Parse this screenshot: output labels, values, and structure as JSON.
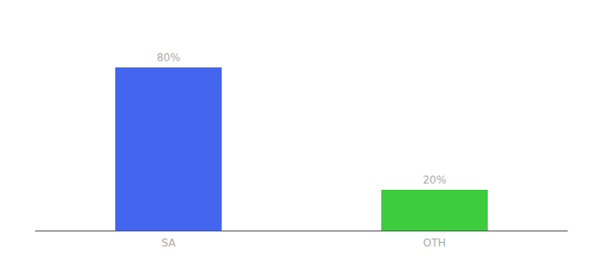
{
  "chart_data": {
    "type": "bar",
    "categories": [
      "SA",
      "OTH"
    ],
    "values": [
      80,
      20
    ],
    "colors": [
      "#4466ee",
      "#3dcc3d"
    ],
    "value_labels": [
      "80%",
      "20%"
    ],
    "data_labels": true,
    "ylim": [
      0,
      100
    ],
    "grid": false,
    "tick_labels": "x"
  }
}
